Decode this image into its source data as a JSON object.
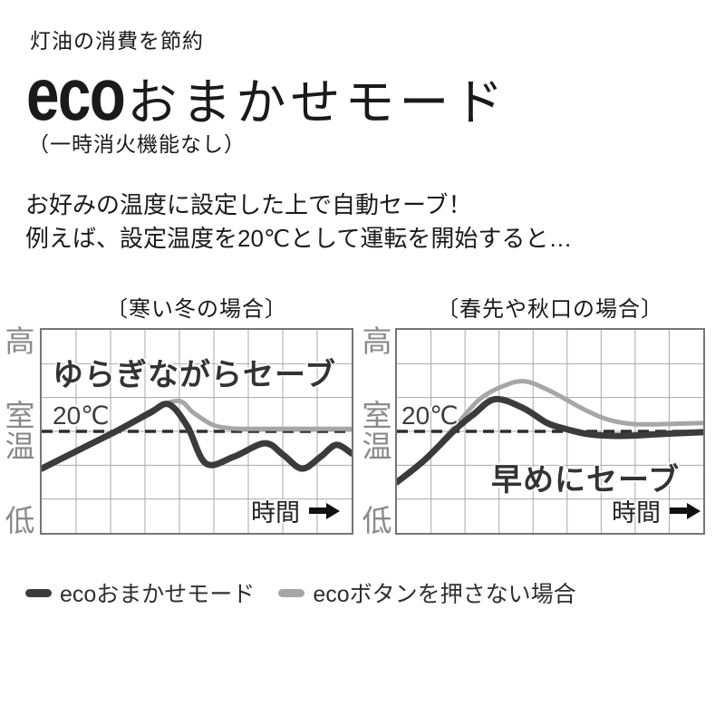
{
  "page": {
    "kicker": "灯油の消費を節約",
    "title_latin": "eco",
    "title_jp": "おまかせモード",
    "subtitle": "（一時消火機能なし）",
    "body_line1": "お好みの温度に設定した上で自動セーブ！",
    "body_line2": "例えば、設定温度を20℃として運転を開始すると…"
  },
  "colors": {
    "eco_line": "#3b3b3b",
    "normal_line": "#a6a6a6",
    "grid": "#a9a9a9",
    "chart_border": "#757575",
    "setpoint_dash": "#2d2d2d",
    "axis_label": "#8a8a8a"
  },
  "legend": {
    "items": [
      {
        "label": "ecoおまかせモード",
        "color": "#3b3b3b"
      },
      {
        "label": "ecoボタンを押さない場合",
        "color": "#a6a6a6"
      }
    ]
  },
  "chart_data": [
    {
      "type": "line",
      "title": "〔寒い冬の場合〕",
      "annotation": "ゆらぎながらセーブ",
      "x_axis_label": "時間",
      "y_axis_labels": [
        "高",
        "室温",
        "低"
      ],
      "setpoint_label": "20℃",
      "setpoint_value": 20,
      "ylabel": "室温",
      "ylim": [
        14,
        26
      ],
      "x_range": [
        0,
        1
      ],
      "grid": {
        "cols": 9,
        "rows": 6,
        "show": true
      },
      "legend_position": "below",
      "series": [
        {
          "name": "ecoおまかせモード",
          "color": "#3b3b3b",
          "width": 7,
          "points": [
            [
              0.0,
              17.8
            ],
            [
              0.13,
              19.0
            ],
            [
              0.25,
              20.1
            ],
            [
              0.35,
              21.1
            ],
            [
              0.41,
              21.6
            ],
            [
              0.47,
              20.3
            ],
            [
              0.53,
              18.1
            ],
            [
              0.62,
              18.5
            ],
            [
              0.72,
              19.3
            ],
            [
              0.78,
              18.6
            ],
            [
              0.84,
              17.8
            ],
            [
              0.9,
              18.5
            ],
            [
              0.95,
              19.2
            ],
            [
              1.0,
              18.7
            ]
          ]
        },
        {
          "name": "ecoボタンを押さない場合",
          "color": "#a6a6a6",
          "width": 5,
          "points": [
            [
              0.0,
              17.8
            ],
            [
              0.25,
              20.1
            ],
            [
              0.35,
              21.2
            ],
            [
              0.44,
              21.8
            ],
            [
              0.49,
              21.1
            ],
            [
              0.55,
              20.4
            ],
            [
              0.6,
              20.2
            ],
            [
              0.65,
              20.15
            ],
            [
              0.8,
              20.15
            ],
            [
              1.0,
              20.15
            ]
          ]
        }
      ]
    },
    {
      "type": "line",
      "title": "〔春先や秋口の場合〕",
      "annotation": "早めにセーブ",
      "x_axis_label": "時間",
      "y_axis_labels": [
        "高",
        "室温",
        "低"
      ],
      "setpoint_label": "20℃",
      "setpoint_value": 20,
      "ylabel": "室温",
      "ylim": [
        14,
        26
      ],
      "x_range": [
        0,
        1
      ],
      "grid": {
        "cols": 9,
        "rows": 6,
        "show": true
      },
      "legend_position": "below",
      "series": [
        {
          "name": "ecoおまかせモード",
          "color": "#3b3b3b",
          "width": 7,
          "points": [
            [
              0.0,
              17.0
            ],
            [
              0.09,
              18.3
            ],
            [
              0.19,
              20.1
            ],
            [
              0.25,
              21.0
            ],
            [
              0.32,
              21.9
            ],
            [
              0.41,
              21.4
            ],
            [
              0.49,
              20.5
            ],
            [
              0.55,
              20.15
            ],
            [
              0.62,
              19.85
            ],
            [
              0.7,
              19.74
            ],
            [
              0.78,
              19.76
            ],
            [
              0.88,
              19.86
            ],
            [
              1.0,
              19.95
            ]
          ]
        },
        {
          "name": "ecoボタンを押さない場合",
          "color": "#a6a6a6",
          "width": 5,
          "points": [
            [
              0.0,
              17.0
            ],
            [
              0.09,
              18.3
            ],
            [
              0.19,
              20.3
            ],
            [
              0.27,
              21.9
            ],
            [
              0.35,
              22.7
            ],
            [
              0.42,
              22.95
            ],
            [
              0.51,
              22.3
            ],
            [
              0.6,
              21.4
            ],
            [
              0.68,
              20.75
            ],
            [
              0.76,
              20.45
            ],
            [
              0.84,
              20.42
            ],
            [
              1.0,
              20.5
            ]
          ]
        }
      ]
    }
  ]
}
